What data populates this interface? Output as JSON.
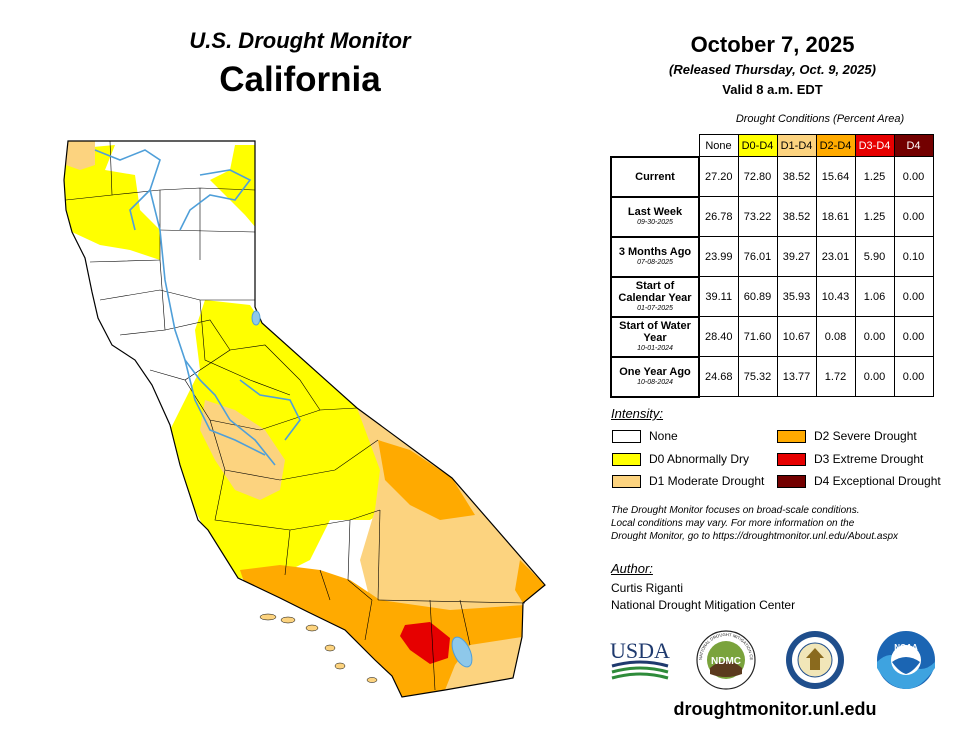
{
  "header": {
    "brand": "U.S. Drought Monitor",
    "state": "California",
    "date": "October 7, 2025",
    "released": "(Released Thursday, Oct. 9, 2025)",
    "valid": "Valid 8 a.m. EDT"
  },
  "table": {
    "caption": "Drought Conditions (Percent Area)",
    "columns": [
      "None",
      "D0-D4",
      "D1-D4",
      "D2-D4",
      "D3-D4",
      "D4"
    ],
    "column_colors": [
      "#ffffff",
      "#ffff00",
      "#fcd37f",
      "#ffaa00",
      "#e60000",
      "#730000"
    ],
    "rows": [
      {
        "label": "Current",
        "date": "",
        "values": [
          "27.20",
          "72.80",
          "38.52",
          "15.64",
          "1.25",
          "0.00"
        ]
      },
      {
        "label": "Last Week",
        "date": "09-30-2025",
        "values": [
          "26.78",
          "73.22",
          "38.52",
          "18.61",
          "1.25",
          "0.00"
        ]
      },
      {
        "label": "3 Months Ago",
        "date": "07-08-2025",
        "values": [
          "23.99",
          "76.01",
          "39.27",
          "23.01",
          "5.90",
          "0.10"
        ]
      },
      {
        "label": "Start of Calendar Year",
        "date": "01-07-2025",
        "values": [
          "39.11",
          "60.89",
          "35.93",
          "10.43",
          "1.06",
          "0.00"
        ]
      },
      {
        "label": "Start of Water Year",
        "date": "10-01-2024",
        "values": [
          "28.40",
          "71.60",
          "10.67",
          "0.08",
          "0.00",
          "0.00"
        ]
      },
      {
        "label": "One Year Ago",
        "date": "10-08-2024",
        "values": [
          "24.68",
          "75.32",
          "13.77",
          "1.72",
          "0.00",
          "0.00"
        ]
      }
    ]
  },
  "legend": {
    "title": "Intensity:",
    "items": [
      {
        "label": "None",
        "color": "#ffffff"
      },
      {
        "label": "D0 Abnormally Dry",
        "color": "#ffff00"
      },
      {
        "label": "D1 Moderate Drought",
        "color": "#fcd37f"
      },
      {
        "label": "D2 Severe Drought",
        "color": "#ffaa00"
      },
      {
        "label": "D3 Extreme Drought",
        "color": "#e60000"
      },
      {
        "label": "D4 Exceptional Drought",
        "color": "#730000"
      }
    ]
  },
  "note": {
    "line1": "The Drought Monitor focuses on broad-scale conditions.",
    "line2": "Local conditions may vary. For more information on the",
    "line3": "Drought Monitor, go to https://droughtmonitor.unl.edu/About.aspx"
  },
  "author": {
    "title": "Author:",
    "name": "Curtis Riganti",
    "org": "National Drought Mitigation Center"
  },
  "logos": {
    "usda": "USDA",
    "ndmc": "NDMC",
    "noaa": "NOAA",
    "ndmc_ring": "NATIONAL DROUGHT MITIGATION CENTER"
  },
  "footer": {
    "url": "droughtmonitor.unl.edu"
  }
}
